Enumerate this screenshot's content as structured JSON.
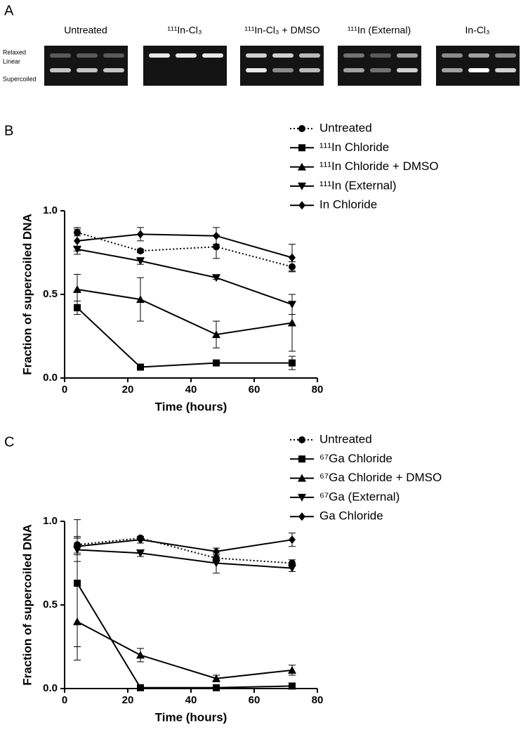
{
  "gel_panel": {
    "panel_label": "A",
    "lanes": [
      "Untreated",
      "¹¹¹In-Cl₃",
      "¹¹¹In-Cl₃ + DMSO",
      "¹¹¹In (External)",
      "In-Cl₃"
    ],
    "band_labels": [
      "Relaxed",
      "Linear",
      "Supercoiled"
    ]
  },
  "chart_data": [
    {
      "type": "line",
      "panel_label": "B",
      "x_label": "Time (hours)",
      "y_label": "Fraction of supercoiled DNA",
      "x": [
        4,
        24,
        48,
        72
      ],
      "xlim": [
        0,
        80
      ],
      "xticks": [
        0,
        20,
        40,
        60,
        80
      ],
      "ylim": [
        0,
        1
      ],
      "yticks": [
        {
          "value": 0,
          "label": "0.0"
        },
        {
          "value": 0.5,
          "label": "0.5"
        },
        {
          "value": 1,
          "label": "1.0"
        }
      ],
      "series": [
        {
          "name": "Untreated",
          "color": "#000000",
          "marker": "circle",
          "dash": "dotted",
          "values": [
            0.87,
            0.76,
            0.785,
            0.665
          ],
          "errors": [
            0.02,
            0.01,
            0.07,
            0.03
          ]
        },
        {
          "name": "¹¹¹In Chloride",
          "color": "#000000",
          "marker": "square",
          "dash": "solid",
          "values": [
            0.42,
            0.065,
            0.09,
            0.09
          ],
          "errors": [
            0.04,
            0.01,
            0.01,
            0.04
          ]
        },
        {
          "name": "¹¹¹In Chloride + DMSO",
          "color": "#000000",
          "marker": "triangle",
          "dash": "solid",
          "values": [
            0.53,
            0.47,
            0.26,
            0.33
          ],
          "errors": [
            0.09,
            0.13,
            0.08,
            0.17
          ]
        },
        {
          "name": "¹¹¹In (External)",
          "color": "#000000",
          "marker": "triangle-down",
          "dash": "solid",
          "values": [
            0.77,
            0.7,
            0.6,
            0.44
          ],
          "errors": [
            0.01,
            0.02,
            0.01,
            0.06
          ]
        },
        {
          "name": "In Chloride",
          "color": "#000000",
          "marker": "diamond",
          "dash": "solid",
          "values": [
            0.82,
            0.86,
            0.85,
            0.72
          ],
          "errors": [
            0.08,
            0.04,
            0.05,
            0.08
          ]
        }
      ]
    },
    {
      "type": "line",
      "panel_label": "C",
      "x_label": "Time (hours)",
      "y_label": "Fraction of supercoiled DNA",
      "x": [
        4,
        24,
        48,
        72
      ],
      "xlim": [
        0,
        80
      ],
      "xticks": [
        0,
        20,
        40,
        60,
        80
      ],
      "ylim": [
        0,
        1
      ],
      "yticks": [
        {
          "value": 0,
          "label": "0.0"
        },
        {
          "value": 0.5,
          "label": "0.5"
        },
        {
          "value": 1,
          "label": "1.0"
        }
      ],
      "series": [
        {
          "name": "Untreated",
          "color": "#000000",
          "marker": "circle",
          "dash": "dotted",
          "values": [
            0.86,
            0.9,
            0.78,
            0.75
          ],
          "errors": [
            0.05,
            0.01,
            0.02,
            0.02
          ]
        },
        {
          "name": "⁶⁷Ga Chloride",
          "color": "#000000",
          "marker": "square",
          "dash": "solid",
          "values": [
            0.63,
            0.005,
            0.005,
            0.015
          ],
          "errors": [
            0.38,
            0.005,
            0.005,
            0.01
          ]
        },
        {
          "name": "⁶⁷Ga Chloride + DMSO",
          "color": "#000000",
          "marker": "triangle",
          "dash": "solid",
          "values": [
            0.4,
            0.2,
            0.06,
            0.11
          ],
          "errors": [
            0.23,
            0.04,
            0.02,
            0.03
          ]
        },
        {
          "name": "⁶⁷Ga (External)",
          "color": "#000000",
          "marker": "triangle-down",
          "dash": "solid",
          "values": [
            0.83,
            0.81,
            0.75,
            0.72
          ],
          "errors": [
            0.07,
            0.02,
            0.06,
            0.02
          ]
        },
        {
          "name": "Ga Chloride",
          "color": "#000000",
          "marker": "diamond",
          "dash": "solid",
          "values": [
            0.85,
            0.89,
            0.82,
            0.89
          ],
          "errors": [
            0.05,
            0.02,
            0.02,
            0.04
          ]
        }
      ]
    }
  ]
}
